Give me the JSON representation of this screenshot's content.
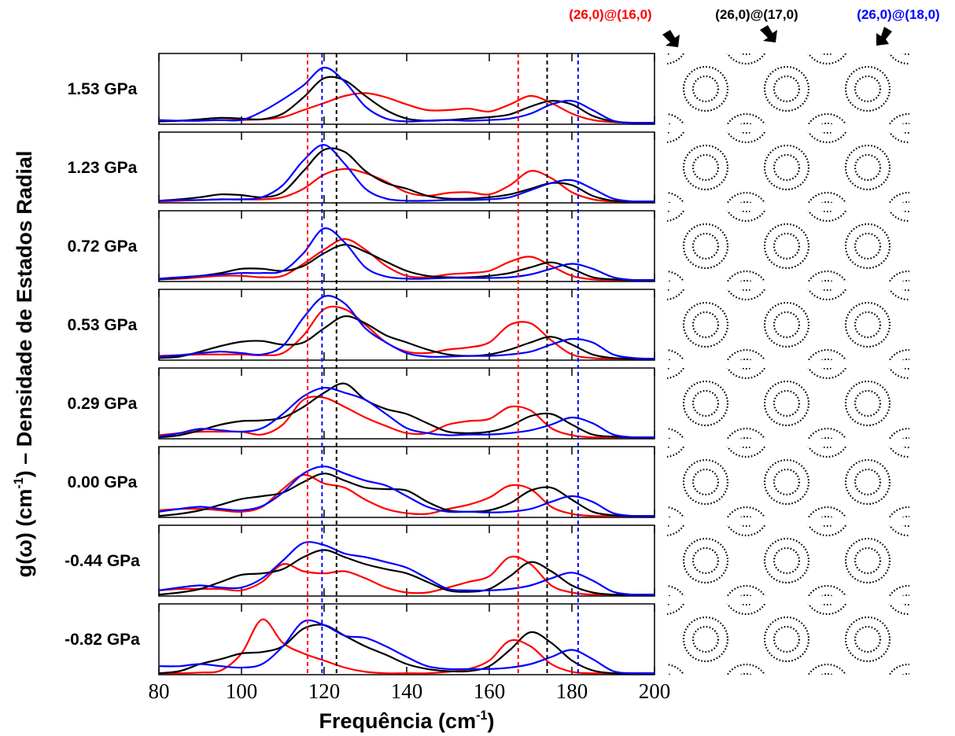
{
  "chart_data": {
    "type": "line",
    "xlabel": {
      "text": "Frequência (cm",
      "sup": "-1",
      "rest": ")"
    },
    "ylabel": {
      "text": "g(ω) (cm",
      "sup": "-1",
      "rest": ") – Densidade de Estados Radial"
    },
    "xlim": [
      80,
      200
    ],
    "xticks": [
      80,
      100,
      120,
      140,
      160,
      180,
      200
    ],
    "ylim": [
      0,
      1
    ],
    "annotations": [
      {
        "text": "(26,0)@(16,0)",
        "color": "#ff0000"
      },
      {
        "text": "(26,0)@(17,0)",
        "color": "#000000"
      },
      {
        "text": "(26,0)@(18,0)",
        "color": "#0000ff"
      }
    ],
    "reference_lines": [
      {
        "x": 116,
        "color": "#ff0000"
      },
      {
        "x": 119.5,
        "color": "#0000ff"
      },
      {
        "x": 123,
        "color": "#000000"
      },
      {
        "x": 167,
        "color": "#ff0000"
      },
      {
        "x": 174,
        "color": "#000000"
      },
      {
        "x": 181.5,
        "color": "#0000ff"
      }
    ],
    "x": [
      80,
      85,
      90,
      95,
      100,
      105,
      110,
      115,
      120,
      125,
      130,
      135,
      140,
      145,
      150,
      155,
      160,
      165,
      170,
      175,
      180,
      185,
      190,
      195,
      200
    ],
    "panels": [
      {
        "label": "1.53 GPa",
        "series": [
          {
            "color": "#ff0000",
            "values": [
              0.04,
              0.05,
              0.05,
              0.06,
              0.06,
              0.07,
              0.1,
              0.2,
              0.3,
              0.4,
              0.44,
              0.38,
              0.28,
              0.2,
              0.2,
              0.22,
              0.18,
              0.28,
              0.4,
              0.3,
              0.15,
              0.06,
              0.03,
              0.02,
              0.02
            ]
          },
          {
            "color": "#000000",
            "values": [
              0.04,
              0.05,
              0.07,
              0.09,
              0.08,
              0.07,
              0.15,
              0.38,
              0.65,
              0.62,
              0.4,
              0.2,
              0.08,
              0.05,
              0.06,
              0.08,
              0.1,
              0.14,
              0.25,
              0.33,
              0.28,
              0.12,
              0.04,
              0.02,
              0.02
            ]
          },
          {
            "color": "#0000ff",
            "values": [
              0.06,
              0.05,
              0.05,
              0.06,
              0.06,
              0.18,
              0.35,
              0.55,
              0.8,
              0.6,
              0.25,
              0.08,
              0.04,
              0.05,
              0.06,
              0.05,
              0.06,
              0.08,
              0.15,
              0.28,
              0.33,
              0.2,
              0.05,
              0.02,
              0.02
            ]
          }
        ]
      },
      {
        "label": "1.23 GPa",
        "series": [
          {
            "color": "#ff0000",
            "values": [
              0.02,
              0.03,
              0.04,
              0.05,
              0.05,
              0.05,
              0.08,
              0.2,
              0.4,
              0.48,
              0.42,
              0.3,
              0.15,
              0.1,
              0.14,
              0.15,
              0.12,
              0.25,
              0.45,
              0.35,
              0.15,
              0.05,
              0.02,
              0.02,
              0.02
            ]
          },
          {
            "color": "#000000",
            "values": [
              0.03,
              0.05,
              0.08,
              0.12,
              0.11,
              0.08,
              0.15,
              0.45,
              0.75,
              0.72,
              0.45,
              0.28,
              0.2,
              0.1,
              0.06,
              0.06,
              0.08,
              0.12,
              0.2,
              0.28,
              0.25,
              0.1,
              0.03,
              0.02,
              0.02
            ]
          },
          {
            "color": "#0000ff",
            "values": [
              0.03,
              0.04,
              0.04,
              0.05,
              0.05,
              0.08,
              0.25,
              0.6,
              0.82,
              0.55,
              0.2,
              0.06,
              0.03,
              0.03,
              0.04,
              0.04,
              0.05,
              0.08,
              0.18,
              0.28,
              0.32,
              0.2,
              0.06,
              0.02,
              0.02
            ]
          }
        ]
      },
      {
        "label": "0.72 GPa",
        "series": [
          {
            "color": "#ff0000",
            "values": [
              0.03,
              0.04,
              0.06,
              0.08,
              0.08,
              0.06,
              0.08,
              0.25,
              0.45,
              0.6,
              0.45,
              0.22,
              0.08,
              0.06,
              0.1,
              0.12,
              0.15,
              0.28,
              0.35,
              0.22,
              0.08,
              0.03,
              0.02,
              0.02,
              0.02
            ]
          },
          {
            "color": "#000000",
            "values": [
              0.03,
              0.05,
              0.08,
              0.12,
              0.18,
              0.18,
              0.15,
              0.22,
              0.4,
              0.52,
              0.42,
              0.28,
              0.15,
              0.08,
              0.06,
              0.06,
              0.08,
              0.12,
              0.2,
              0.27,
              0.18,
              0.06,
              0.03,
              0.02,
              0.02
            ]
          },
          {
            "color": "#0000ff",
            "values": [
              0.04,
              0.06,
              0.08,
              0.1,
              0.12,
              0.12,
              0.15,
              0.4,
              0.75,
              0.55,
              0.2,
              0.07,
              0.04,
              0.04,
              0.05,
              0.05,
              0.05,
              0.06,
              0.1,
              0.18,
              0.25,
              0.18,
              0.06,
              0.02,
              0.02
            ]
          }
        ]
      },
      {
        "label": "0.53 GPa",
        "series": [
          {
            "color": "#ff0000",
            "values": [
              0.06,
              0.07,
              0.08,
              0.08,
              0.08,
              0.07,
              0.1,
              0.35,
              0.72,
              0.72,
              0.5,
              0.25,
              0.12,
              0.1,
              0.15,
              0.18,
              0.25,
              0.5,
              0.52,
              0.28,
              0.08,
              0.03,
              0.02,
              0.02,
              0.02
            ]
          },
          {
            "color": "#000000",
            "values": [
              0.03,
              0.05,
              0.12,
              0.2,
              0.26,
              0.27,
              0.22,
              0.25,
              0.45,
              0.62,
              0.52,
              0.35,
              0.25,
              0.15,
              0.08,
              0.06,
              0.08,
              0.15,
              0.25,
              0.33,
              0.22,
              0.08,
              0.03,
              0.02,
              0.02
            ]
          },
          {
            "color": "#0000ff",
            "values": [
              0.05,
              0.07,
              0.1,
              0.12,
              0.1,
              0.08,
              0.2,
              0.6,
              0.9,
              0.8,
              0.45,
              0.25,
              0.1,
              0.05,
              0.05,
              0.06,
              0.06,
              0.08,
              0.12,
              0.22,
              0.3,
              0.25,
              0.08,
              0.03,
              0.02
            ]
          }
        ]
      },
      {
        "label": "0.29 GPa",
        "series": [
          {
            "color": "#ff0000",
            "values": [
              0.05,
              0.08,
              0.1,
              0.1,
              0.1,
              0.06,
              0.2,
              0.55,
              0.58,
              0.45,
              0.3,
              0.18,
              0.08,
              0.08,
              0.2,
              0.25,
              0.28,
              0.45,
              0.4,
              0.15,
              0.05,
              0.02,
              0.02,
              0.02,
              0.02
            ]
          },
          {
            "color": "#000000",
            "values": [
              0.02,
              0.05,
              0.12,
              0.2,
              0.25,
              0.26,
              0.3,
              0.45,
              0.65,
              0.78,
              0.55,
              0.42,
              0.35,
              0.22,
              0.1,
              0.08,
              0.1,
              0.18,
              0.32,
              0.35,
              0.2,
              0.06,
              0.03,
              0.02,
              0.02
            ]
          },
          {
            "color": "#0000ff",
            "values": [
              0.03,
              0.08,
              0.14,
              0.12,
              0.1,
              0.15,
              0.35,
              0.6,
              0.72,
              0.65,
              0.55,
              0.35,
              0.15,
              0.08,
              0.05,
              0.06,
              0.06,
              0.08,
              0.12,
              0.2,
              0.3,
              0.22,
              0.06,
              0.02,
              0.02
            ]
          }
        ]
      },
      {
        "label": "0.00 GPa",
        "series": [
          {
            "color": "#ff0000",
            "values": [
              0.1,
              0.12,
              0.12,
              0.1,
              0.08,
              0.15,
              0.4,
              0.6,
              0.48,
              0.42,
              0.25,
              0.12,
              0.06,
              0.05,
              0.12,
              0.18,
              0.28,
              0.45,
              0.4,
              0.15,
              0.05,
              0.02,
              0.02,
              0.02,
              0.02
            ]
          },
          {
            "color": "#000000",
            "values": [
              0.02,
              0.05,
              0.1,
              0.18,
              0.26,
              0.3,
              0.35,
              0.5,
              0.62,
              0.52,
              0.42,
              0.4,
              0.38,
              0.22,
              0.1,
              0.08,
              0.1,
              0.2,
              0.38,
              0.42,
              0.25,
              0.08,
              0.03,
              0.02,
              0.02
            ]
          },
          {
            "color": "#0000ff",
            "values": [
              0.08,
              0.12,
              0.15,
              0.12,
              0.1,
              0.16,
              0.35,
              0.62,
              0.72,
              0.62,
              0.52,
              0.45,
              0.3,
              0.15,
              0.08,
              0.08,
              0.07,
              0.08,
              0.12,
              0.22,
              0.3,
              0.22,
              0.06,
              0.02,
              0.02
            ]
          }
        ]
      },
      {
        "label": "-0.44 GPa",
        "series": [
          {
            "color": "#ff0000",
            "values": [
              0.08,
              0.1,
              0.1,
              0.1,
              0.08,
              0.2,
              0.45,
              0.35,
              0.32,
              0.35,
              0.25,
              0.12,
              0.05,
              0.05,
              0.12,
              0.2,
              0.28,
              0.55,
              0.45,
              0.15,
              0.05,
              0.02,
              0.02,
              0.02,
              0.02
            ]
          },
          {
            "color": "#000000",
            "values": [
              0.02,
              0.05,
              0.1,
              0.2,
              0.3,
              0.32,
              0.38,
              0.55,
              0.65,
              0.55,
              0.45,
              0.38,
              0.32,
              0.2,
              0.08,
              0.06,
              0.1,
              0.28,
              0.48,
              0.35,
              0.15,
              0.05,
              0.02,
              0.02,
              0.02
            ]
          },
          {
            "color": "#0000ff",
            "values": [
              0.08,
              0.12,
              0.15,
              0.12,
              0.12,
              0.25,
              0.5,
              0.75,
              0.72,
              0.6,
              0.55,
              0.48,
              0.4,
              0.25,
              0.1,
              0.08,
              0.08,
              0.1,
              0.15,
              0.25,
              0.33,
              0.22,
              0.06,
              0.02,
              0.02
            ]
          }
        ]
      },
      {
        "label": "-0.82 GPa",
        "series": [
          {
            "color": "#ff0000",
            "values": [
              0.02,
              0.02,
              0.03,
              0.06,
              0.3,
              0.78,
              0.45,
              0.3,
              0.2,
              0.1,
              0.04,
              0.02,
              0.02,
              0.02,
              0.04,
              0.08,
              0.2,
              0.48,
              0.4,
              0.15,
              0.04,
              0.02,
              0.02,
              0.02,
              0.02
            ]
          },
          {
            "color": "#000000",
            "values": [
              0.02,
              0.05,
              0.15,
              0.22,
              0.3,
              0.32,
              0.4,
              0.65,
              0.7,
              0.55,
              0.4,
              0.28,
              0.15,
              0.08,
              0.05,
              0.05,
              0.12,
              0.35,
              0.6,
              0.45,
              0.2,
              0.06,
              0.02,
              0.02,
              0.02
            ]
          },
          {
            "color": "#0000ff",
            "values": [
              0.12,
              0.12,
              0.15,
              0.12,
              0.1,
              0.15,
              0.4,
              0.75,
              0.7,
              0.55,
              0.52,
              0.4,
              0.25,
              0.12,
              0.08,
              0.08,
              0.08,
              0.1,
              0.15,
              0.25,
              0.35,
              0.22,
              0.05,
              0.02,
              0.02
            ]
          }
        ]
      }
    ]
  }
}
